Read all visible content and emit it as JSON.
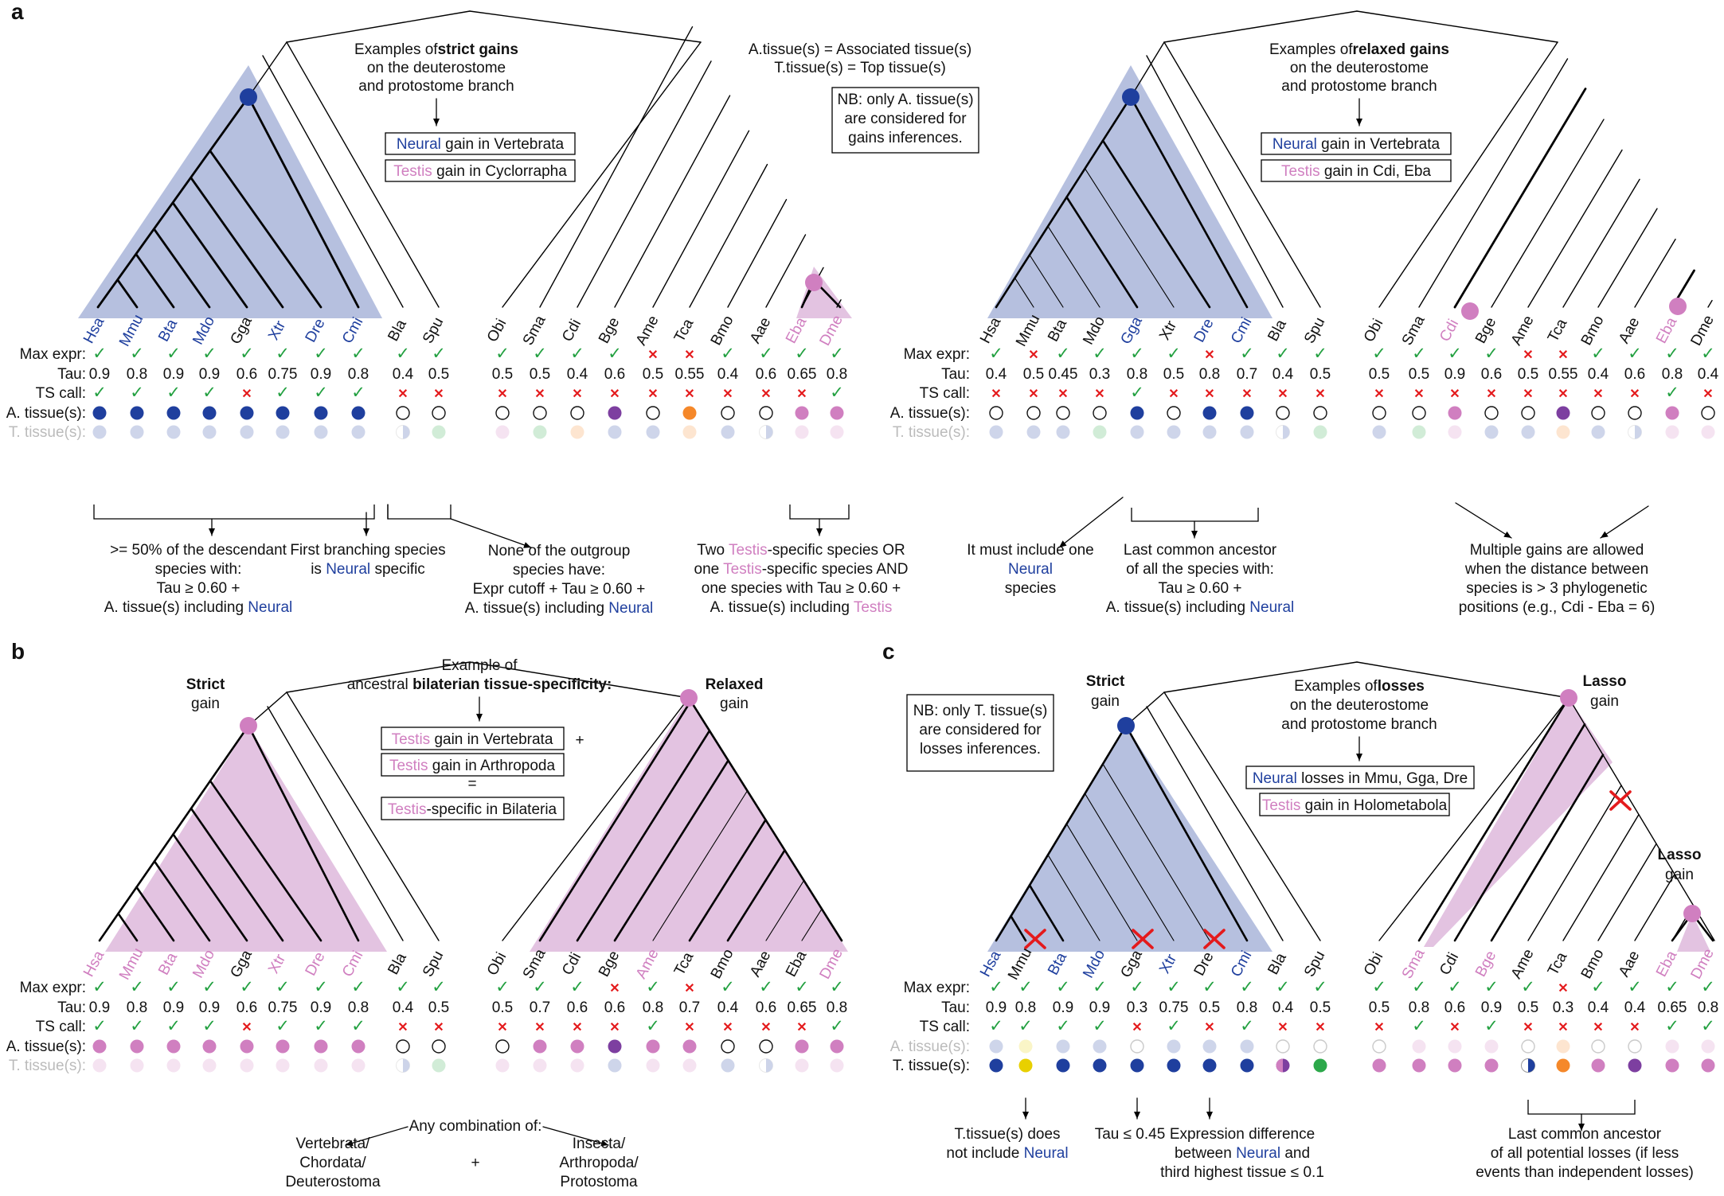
{
  "colors": {
    "neural": "#1f3f9e",
    "testis": "#d07fc0",
    "ovary": "#f5882a",
    "liver": "#e8d000",
    "muscle": "#2ca84a",
    "purple": "#7d3fa0",
    "check": "#22a040",
    "cross": "#e41a1c",
    "blueFill": "#b6c0df",
    "pinkFill": "#e3c3e1",
    "tfade": 0.22
  },
  "row_labels": {
    "max": "Max expr:",
    "tau": "Tau:",
    "ts": "TS call:",
    "at": "A. tissue(s):",
    "tt": "T. tissue(s):"
  },
  "icons": {
    "check": "✓",
    "cross": "✕"
  },
  "panelA": {
    "letter": "a",
    "left": {
      "species": [
        "Hsa",
        "Mmu",
        "Bta",
        "Mdo",
        "Gga",
        "Xtr",
        "Dre",
        "Cmi",
        "Bla",
        "Spu",
        "Obi",
        "Sma",
        "Cdi",
        "Bge",
        "Ame",
        "Tca",
        "Bmo",
        "Aae",
        "Eba",
        "Dme"
      ],
      "sp_color": [
        "n",
        "n",
        "n",
        "n",
        "k",
        "n",
        "n",
        "n",
        "k",
        "k",
        "k",
        "k",
        "k",
        "k",
        "k",
        "k",
        "k",
        "k",
        "t",
        "t"
      ],
      "max": [
        "c",
        "c",
        "c",
        "c",
        "c",
        "c",
        "c",
        "c",
        "c",
        "c",
        "c",
        "c",
        "c",
        "c",
        "x",
        "x",
        "c",
        "c",
        "c",
        "c"
      ],
      "tau": [
        "0.9",
        "0.8",
        "0.9",
        "0.9",
        "0.6",
        "0.75",
        "0.9",
        "0.8",
        "0.4",
        "0.5",
        "0.5",
        "0.5",
        "0.4",
        "0.6",
        "0.5",
        "0.55",
        "0.4",
        "0.6",
        "0.65",
        "0.8"
      ],
      "ts": [
        "c",
        "c",
        "c",
        "c",
        "x",
        "c",
        "c",
        "c",
        "x",
        "x",
        "x",
        "x",
        "x",
        "x",
        "x",
        "x",
        "x",
        "x",
        "x",
        "c"
      ],
      "at": [
        "N",
        "N",
        "N",
        "N",
        "N",
        "N",
        "N",
        "N",
        "o",
        "o",
        "o",
        "o",
        "o",
        "P",
        "o",
        "O",
        "o",
        "o",
        "T",
        "T"
      ],
      "tt": [
        "N",
        "N",
        "N",
        "N",
        "N",
        "N",
        "N",
        "N",
        "h",
        "M",
        "T",
        "M",
        "O",
        "N",
        "N",
        "O",
        "N",
        "h",
        "T",
        "T"
      ],
      "title1": "Examples of",
      "title_bold": "strict gains",
      "title2": "on the deuterostome",
      "title3": "and protostome branch",
      "box1_tissue": "Neural",
      "box1_rest": " gain in Vertebrata",
      "box2_tissue": "Testis",
      "box2_rest": " gain in Cyclorrapha",
      "def1": "A.tissue(s) = Associated tissue(s)",
      "def2": "T.tissue(s) = Top tissue(s)",
      "nb1": "NB: only A. tissue(s)",
      "nb2": "are considered for",
      "nb3": "gains inferences.",
      "fn1": [
        ">= 50% of the descendant",
        "species with:",
        "Tau ≥ 0.60 +",
        "A. tissue(s) including ",
        "Neural"
      ],
      "fn2": [
        "First branching species",
        "is ",
        "Neural",
        " specific"
      ],
      "fn3": [
        "None of the outgroup",
        "species have:",
        "Expr cutoff + Tau ≥ 0.60 +",
        "A. tissue(s) including ",
        "Neural"
      ],
      "fn4": [
        "Two ",
        "Testis",
        "-specific species OR",
        "one ",
        "Testis",
        "-specific species AND",
        "one species with Tau ≥ 0.60 +",
        "A. tissue(s) including ",
        "Testis"
      ]
    },
    "right": {
      "species": [
        "Hsa",
        "Mmu",
        "Bta",
        "Mdo",
        "Gga",
        "Xtr",
        "Dre",
        "Cmi",
        "Bla",
        "Spu",
        "Obi",
        "Sma",
        "Cdi",
        "Bge",
        "Ame",
        "Tca",
        "Bmo",
        "Aae",
        "Eba",
        "Dme"
      ],
      "sp_color": [
        "k",
        "k",
        "k",
        "k",
        "n",
        "k",
        "n",
        "n",
        "k",
        "k",
        "k",
        "k",
        "t",
        "k",
        "k",
        "k",
        "k",
        "k",
        "t",
        "k"
      ],
      "max": [
        "c",
        "x",
        "c",
        "c",
        "c",
        "c",
        "x",
        "c",
        "c",
        "c",
        "c",
        "c",
        "c",
        "c",
        "x",
        "x",
        "c",
        "c",
        "c",
        "c"
      ],
      "tau": [
        "0.4",
        "0.5",
        "0.45",
        "0.3",
        "0.8",
        "0.5",
        "0.8",
        "0.7",
        "0.4",
        "0.5",
        "0.5",
        "0.5",
        "0.9",
        "0.6",
        "0.5",
        "0.55",
        "0.4",
        "0.6",
        "0.8",
        "0.4"
      ],
      "ts": [
        "x",
        "x",
        "x",
        "x",
        "c",
        "x",
        "x",
        "x",
        "x",
        "x",
        "x",
        "x",
        "x",
        "x",
        "x",
        "x",
        "x",
        "x",
        "c",
        "x"
      ],
      "at": [
        "o",
        "o",
        "o",
        "o",
        "N",
        "o",
        "N",
        "N",
        "o",
        "o",
        "o",
        "o",
        "T",
        "o",
        "o",
        "P",
        "o",
        "o",
        "T",
        "o"
      ],
      "tt": [
        "N",
        "N",
        "N",
        "M",
        "N",
        "N",
        "N",
        "N",
        "h",
        "M",
        "N",
        "M",
        "T",
        "N",
        "N",
        "O",
        "N",
        "h",
        "T",
        "T"
      ],
      "title1": "Examples of",
      "title_bold": "relaxed gains",
      "title2": "on the deuterostome",
      "title3": "and protostome branch",
      "box1_tissue": "Neural",
      "box1_rest": " gain in Vertebrata",
      "box2_tissue": "Testis",
      "box2_rest": " gain in Cdi, Eba",
      "fn1": [
        "It must include one",
        "Neural",
        "-specific",
        "species"
      ],
      "fn2": [
        "Last common ancestor",
        "of all the species with:",
        "Tau ≥ 0.60 +",
        "A. tissue(s) including ",
        "Neural"
      ],
      "fn3": [
        "Multiple gains are allowed",
        "when the distance between",
        "species is > 3 phylogenetic",
        "positions (e.g., Cdi - Eba = 6)"
      ]
    }
  },
  "panelB": {
    "letter": "b",
    "species": [
      "Hsa",
      "Mmu",
      "Bta",
      "Mdo",
      "Gga",
      "Xtr",
      "Dre",
      "Cmi",
      "Bla",
      "Spu",
      "Obi",
      "Sma",
      "Cdi",
      "Bge",
      "Ame",
      "Tca",
      "Bmo",
      "Aae",
      "Eba",
      "Dme"
    ],
    "sp_color": [
      "t",
      "t",
      "t",
      "t",
      "k",
      "t",
      "t",
      "t",
      "k",
      "k",
      "k",
      "k",
      "k",
      "k",
      "t",
      "k",
      "k",
      "k",
      "k",
      "t"
    ],
    "max": [
      "c",
      "c",
      "c",
      "c",
      "c",
      "c",
      "c",
      "c",
      "c",
      "c",
      "c",
      "c",
      "c",
      "x",
      "c",
      "x",
      "c",
      "c",
      "c",
      "c"
    ],
    "tau": [
      "0.9",
      "0.8",
      "0.9",
      "0.9",
      "0.6",
      "0.75",
      "0.9",
      "0.8",
      "0.4",
      "0.5",
      "0.5",
      "0.7",
      "0.6",
      "0.6",
      "0.8",
      "0.7",
      "0.4",
      "0.6",
      "0.65",
      "0.8"
    ],
    "ts": [
      "c",
      "c",
      "c",
      "c",
      "x",
      "c",
      "c",
      "c",
      "x",
      "x",
      "x",
      "x",
      "x",
      "x",
      "c",
      "x",
      "x",
      "x",
      "x",
      "c"
    ],
    "at": [
      "T",
      "T",
      "T",
      "T",
      "T",
      "T",
      "T",
      "T",
      "o",
      "o",
      "o",
      "T",
      "T",
      "P",
      "T",
      "T",
      "o",
      "o",
      "T",
      "T"
    ],
    "tt": [
      "T",
      "T",
      "T",
      "T",
      "T",
      "T",
      "T",
      "T",
      "h",
      "M",
      "T",
      "T",
      "T",
      "N",
      "T",
      "T",
      "N",
      "h",
      "T",
      "T"
    ],
    "strict1": "Strict",
    "strict2": "gain",
    "relaxed1": "Relaxed",
    "relaxed2": "gain",
    "title1": "Example of",
    "title2a": "ancestral ",
    "title2b": "bilaterian tissue-specificity:",
    "box1_tissue": "Testis",
    "box1_rest": " gain in Vertebrata",
    "plus": "+",
    "box2_tissue": "Testis",
    "box2_rest": " gain in Arthropoda",
    "eq": "=",
    "box3_tissue": "Testis",
    "box3_rest": "-specific in Bilateria",
    "comb": "Any combination of:",
    "left_group": [
      "Vertebrata/",
      "Chordata/",
      "Deuterostoma"
    ],
    "right_group": [
      "Insecta/",
      "Arthropoda/",
      "Protostoma"
    ],
    "plus2": "+"
  },
  "panelC": {
    "letter": "c",
    "species": [
      "Hsa",
      "Mmu",
      "Bta",
      "Mdo",
      "Gga",
      "Xtr",
      "Dre",
      "Cmi",
      "Bla",
      "Spu",
      "Obi",
      "Sma",
      "Cdi",
      "Bge",
      "Ame",
      "Tca",
      "Bmo",
      "Aae",
      "Eba",
      "Dme"
    ],
    "sp_color": [
      "n",
      "k",
      "n",
      "n",
      "k",
      "n",
      "k",
      "n",
      "k",
      "k",
      "k",
      "t",
      "k",
      "t",
      "k",
      "k",
      "k",
      "k",
      "t",
      "t"
    ],
    "max": [
      "c",
      "c",
      "c",
      "c",
      "c",
      "c",
      "c",
      "c",
      "c",
      "c",
      "c",
      "c",
      "c",
      "c",
      "c",
      "x",
      "c",
      "c",
      "c",
      "c"
    ],
    "tau": [
      "0.9",
      "0.8",
      "0.9",
      "0.9",
      "0.3",
      "0.75",
      "0.5",
      "0.8",
      "0.4",
      "0.5",
      "0.5",
      "0.8",
      "0.6",
      "0.9",
      "0.5",
      "0.3",
      "0.4",
      "0.4",
      "0.65",
      "0.8"
    ],
    "ts": [
      "c",
      "c",
      "c",
      "c",
      "x",
      "c",
      "x",
      "c",
      "x",
      "x",
      "x",
      "c",
      "x",
      "c",
      "x",
      "x",
      "x",
      "x",
      "c",
      "c"
    ],
    "at": [
      "N",
      "L",
      "N",
      "N",
      "o",
      "N",
      "N",
      "N",
      "o",
      "o",
      "o",
      "T",
      "T",
      "T",
      "o",
      "O",
      "o",
      "o",
      "T",
      "T"
    ],
    "tt": [
      "N",
      "L",
      "N",
      "N",
      "N",
      "N",
      "N",
      "N",
      "hp",
      "M",
      "T",
      "T",
      "T",
      "T",
      "h",
      "O",
      "T",
      "P",
      "T",
      "T"
    ],
    "strict1": "Strict",
    "strict2": "gain",
    "lasso1": "Lasso",
    "lasso2": "gain",
    "nb1": "NB: only T. tissue(s)",
    "nb2": "are considered for",
    "nb3": "losses inferences.",
    "title1": "Examples of",
    "title_bold": "losses",
    "title2": "on the deuterostome",
    "title3": "and protostome branch",
    "box1_tissue": "Neural",
    "box1_rest": " losses in Mmu, Gga, Dre",
    "box2_tissue": "Testis",
    "box2_rest": " gain in Holometabola",
    "fn1": [
      "T.tissue(s) does",
      "not include ",
      "Neural"
    ],
    "fn2": "Tau ≤ 0.45",
    "fn3": [
      "Expression difference",
      "between ",
      "Neural",
      " and",
      "third highest tissue ≤ 0.1"
    ],
    "fn4": [
      "Last common ancestor",
      "of all potential losses (if less",
      "events than independent losses)"
    ]
  }
}
